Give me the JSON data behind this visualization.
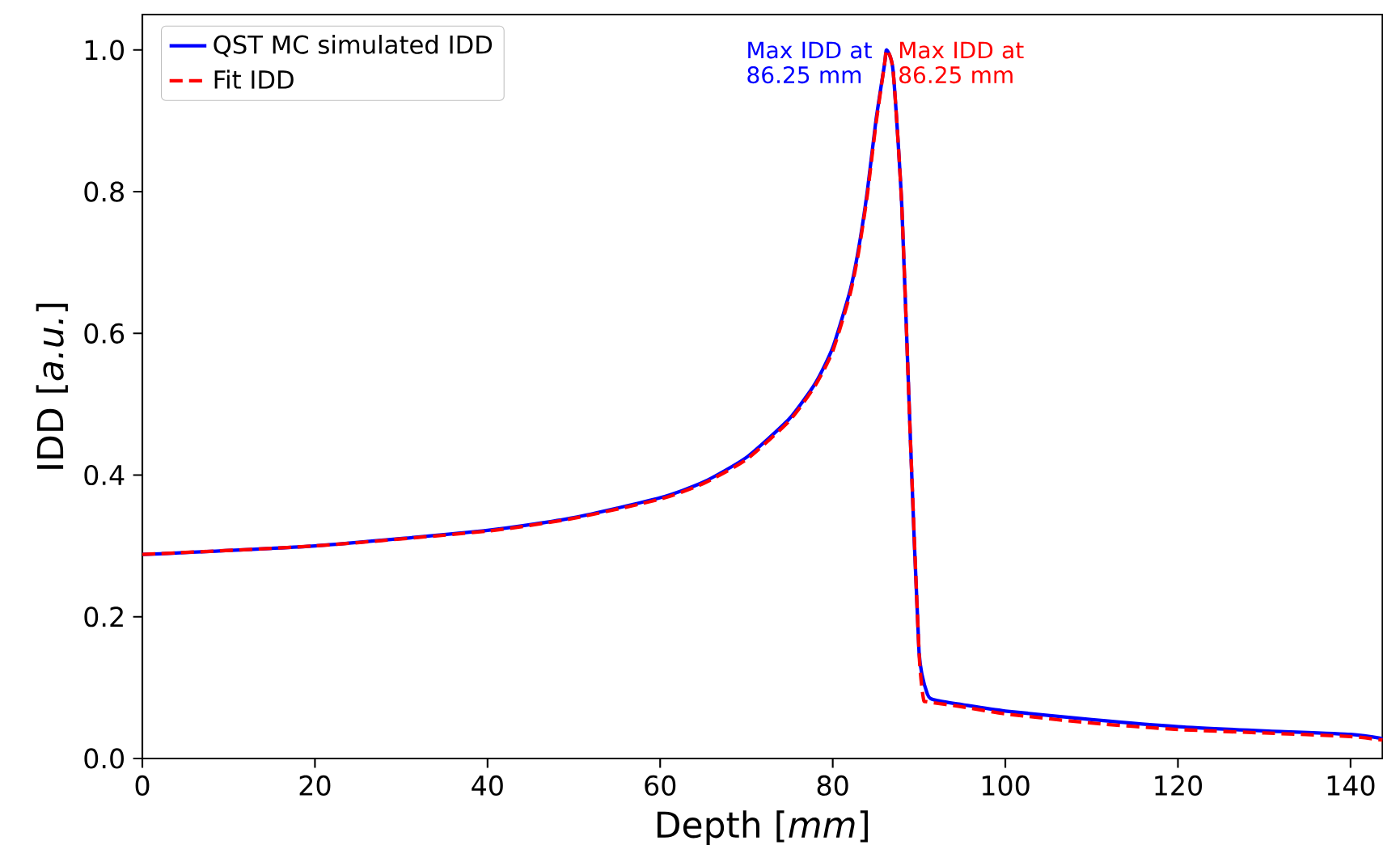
{
  "chart_data": {
    "type": "line",
    "xlabel": "Depth [*mm*]",
    "ylabel": "IDD [*a.u.*]",
    "xlim": [
      0,
      143.7
    ],
    "ylim": [
      0,
      1.05
    ],
    "xticks": [
      0,
      20,
      40,
      60,
      80,
      100,
      120,
      140
    ],
    "yticks": [
      {
        "value": 0,
        "label": "0.0"
      },
      0.2,
      0.4,
      0.6,
      0.8,
      {
        "value": 1,
        "label": "1.0"
      }
    ],
    "legend": "top left",
    "series": [
      {
        "name": "QST MC simulated IDD",
        "color": "#0000ff",
        "line_style": "solid",
        "x": [
          0,
          20,
          40,
          50,
          60,
          65,
          70,
          75,
          78,
          80,
          82,
          83,
          84,
          85,
          86,
          86.25,
          87,
          88,
          89,
          90,
          91,
          92,
          95,
          100,
          110,
          120,
          130,
          140,
          143.7
        ],
        "values": [
          0.288,
          0.3,
          0.322,
          0.34,
          0.368,
          0.39,
          0.425,
          0.48,
          0.53,
          0.58,
          0.66,
          0.72,
          0.8,
          0.9,
          0.98,
          1.0,
          0.97,
          0.78,
          0.45,
          0.15,
          0.09,
          0.082,
          0.076,
          0.067,
          0.055,
          0.045,
          0.039,
          0.034,
          0.028
        ]
      },
      {
        "name": "Fit IDD",
        "color": "#ff0000",
        "line_style": "dashed",
        "x": [
          0,
          20,
          40,
          50,
          60,
          65,
          70,
          75,
          78,
          80,
          82,
          83,
          84,
          85,
          86,
          86.25,
          87,
          88,
          89,
          90,
          90.5,
          91,
          95,
          100,
          110,
          120,
          130,
          140,
          143.7
        ],
        "values": [
          0.288,
          0.3,
          0.321,
          0.339,
          0.366,
          0.388,
          0.422,
          0.477,
          0.527,
          0.575,
          0.655,
          0.715,
          0.795,
          0.895,
          0.98,
          1.0,
          0.97,
          0.78,
          0.45,
          0.15,
          0.085,
          0.08,
          0.073,
          0.063,
          0.05,
          0.041,
          0.036,
          0.031,
          0.026
        ]
      }
    ],
    "annotations": [
      {
        "text": "Max IDD at 86.25 mm",
        "x": 86.25,
        "y": 1.0
      },
      {
        "text": "Max IDD at 86.25 mm",
        "x": 86.25,
        "y": 1.0
      }
    ]
  }
}
